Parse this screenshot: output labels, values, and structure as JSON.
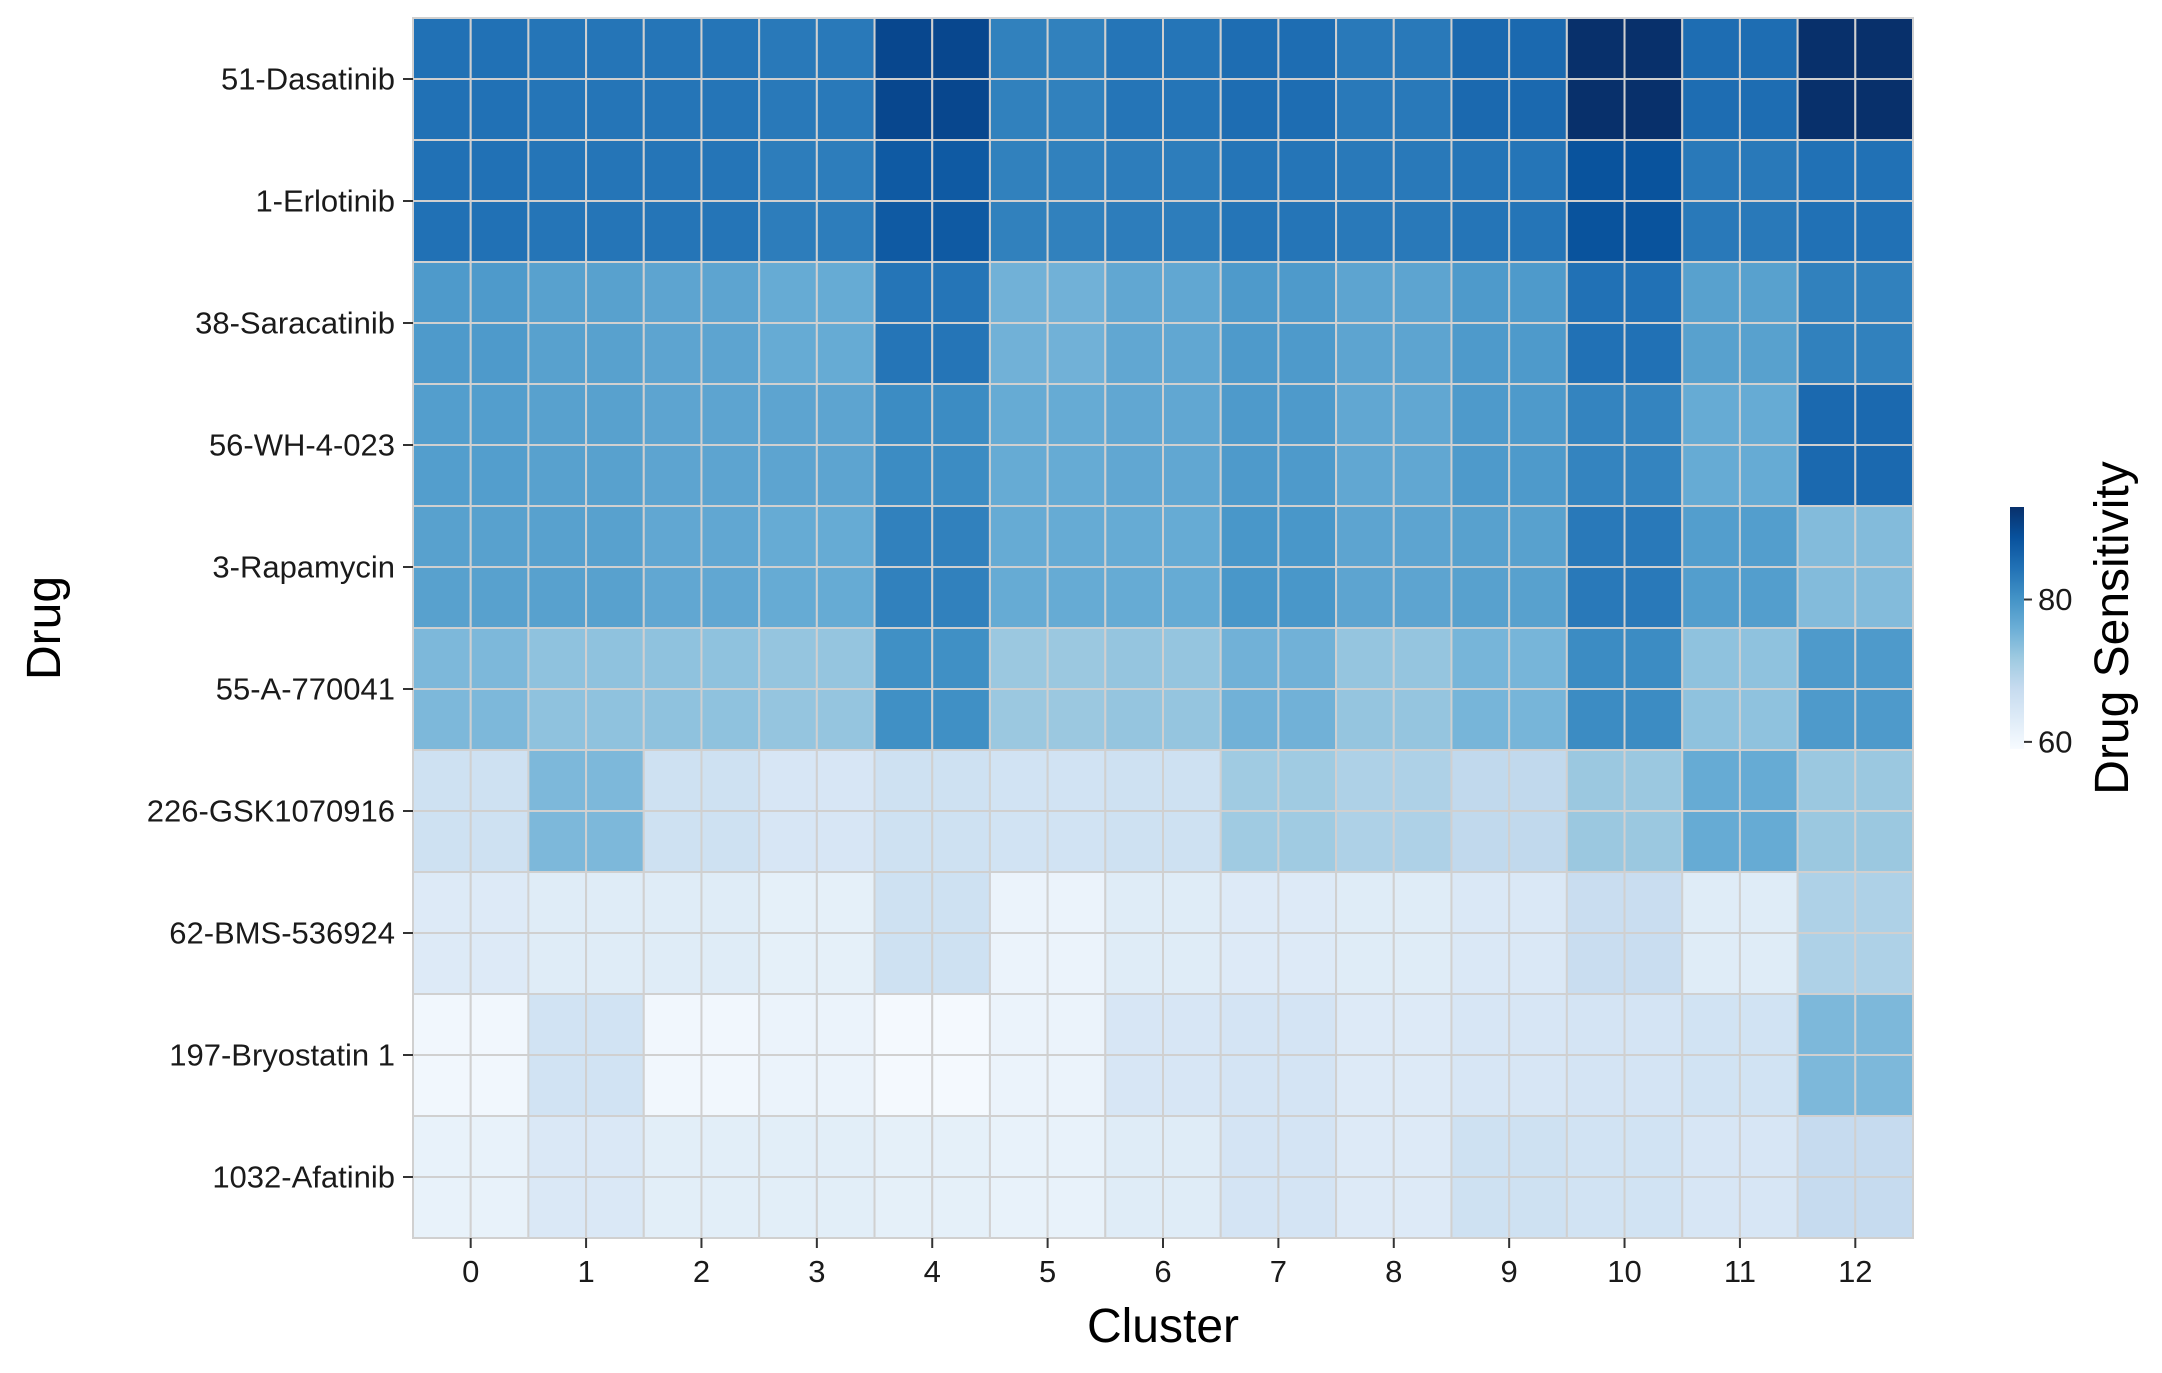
{
  "chart_data": {
    "type": "heatmap",
    "xlabel": "Cluster",
    "ylabel": "Drug",
    "colorbar_label": "Drug Sensitivity",
    "colorbar_ticks": [
      60,
      80
    ],
    "color_range": [
      59,
      93
    ],
    "colormap": [
      "#f7fbff",
      "#deebf7",
      "#c6dbef",
      "#9ecae1",
      "#6baed6",
      "#4292c6",
      "#2171b5",
      "#08519c",
      "#08306b"
    ],
    "x_categories": [
      "0",
      "1",
      "2",
      "3",
      "4",
      "5",
      "6",
      "7",
      "8",
      "9",
      "10",
      "11",
      "12"
    ],
    "y_categories": [
      "51-Dasatinib",
      "1-Erlotinib",
      "38-Saracatinib",
      "56-WH-4-023",
      "3-Rapamycin",
      "55-A-770041",
      "226-GSK1070916",
      "62-BMS-536924",
      "197-Bryostatin 1",
      "1032-Afatinib"
    ],
    "values": [
      [
        84.5,
        84.0,
        84.0,
        83.5,
        90.0,
        82.5,
        84.0,
        85.0,
        83.5,
        85.5,
        93.0,
        85.0,
        93.5
      ],
      [
        84.5,
        84.0,
        84.0,
        83.0,
        87.5,
        82.5,
        83.0,
        84.0,
        83.5,
        84.0,
        88.5,
        83.5,
        84.5
      ],
      [
        79.0,
        78.0,
        77.5,
        76.5,
        84.0,
        75.5,
        77.0,
        79.0,
        77.5,
        79.0,
        84.5,
        78.0,
        82.5
      ],
      [
        78.5,
        78.0,
        77.5,
        77.5,
        81.0,
        76.5,
        77.0,
        79.0,
        77.0,
        79.0,
        82.0,
        76.5,
        85.5
      ],
      [
        78.0,
        78.0,
        77.0,
        76.5,
        82.5,
        76.5,
        76.5,
        79.5,
        77.5,
        78.0,
        83.5,
        78.5,
        74.0
      ],
      [
        74.5,
        73.0,
        73.0,
        72.5,
        80.5,
        72.0,
        72.5,
        75.5,
        72.5,
        75.0,
        81.0,
        73.0,
        79.0
      ],
      [
        66.0,
        74.5,
        66.0,
        64.5,
        66.0,
        65.5,
        66.0,
        71.5,
        70.0,
        68.0,
        72.0,
        76.5,
        72.0
      ],
      [
        63.5,
        63.0,
        63.0,
        62.0,
        66.0,
        61.0,
        63.0,
        63.5,
        63.0,
        64.0,
        67.0,
        63.0,
        70.0
      ],
      [
        60.0,
        65.5,
        60.0,
        61.0,
        59.5,
        61.0,
        64.5,
        65.0,
        63.5,
        64.5,
        65.0,
        65.5,
        74.5
      ],
      [
        61.5,
        64.0,
        62.5,
        62.5,
        62.0,
        61.5,
        63.0,
        65.0,
        63.5,
        66.0,
        65.5,
        64.5,
        67.5
      ]
    ]
  }
}
